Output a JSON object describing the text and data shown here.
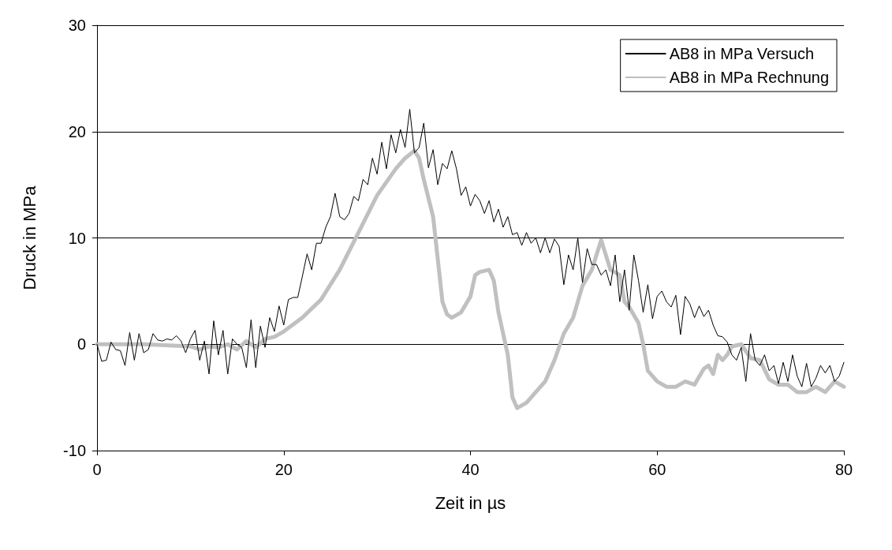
{
  "chart_data": {
    "type": "line",
    "xlabel": "Zeit in µs",
    "ylabel": "Druck in MPa",
    "xlim": [
      0,
      80
    ],
    "xticks": [
      0,
      20,
      40,
      60,
      80
    ],
    "ylim": [
      -10,
      30
    ],
    "yticks": [
      -10,
      0,
      10,
      20,
      30
    ],
    "grid": "y",
    "legend": "top right",
    "marker": "none",
    "line_style": "solid",
    "series": [
      {
        "name": "AB8 in MPa Versuch",
        "color": "#000000",
        "x": [
          0,
          0.5,
          1,
          1.5,
          2,
          2.5,
          3,
          3.5,
          4,
          4.5,
          5,
          5.5,
          6,
          6.5,
          7,
          7.5,
          8,
          8.5,
          9,
          9.5,
          10,
          10.5,
          11,
          11.5,
          12,
          12.5,
          13,
          13.5,
          14,
          14.5,
          15,
          15.5,
          16,
          16.5,
          17,
          17.5,
          18,
          18.5,
          19,
          19.5,
          20,
          20.5,
          21,
          21.5,
          22,
          22.5,
          23,
          23.5,
          24,
          24.5,
          25,
          25.5,
          26,
          26.5,
          27,
          27.5,
          28,
          28.5,
          29,
          29.5,
          30,
          30.5,
          31,
          31.5,
          32,
          32.5,
          33,
          33.5,
          34,
          34.5,
          35,
          35.5,
          36,
          36.5,
          37,
          37.5,
          38,
          38.5,
          39,
          39.5,
          40,
          40.5,
          41,
          41.5,
          42,
          42.5,
          43,
          43.5,
          44,
          44.5,
          45,
          45.5,
          46,
          46.5,
          47,
          47.5,
          48,
          48.5,
          49,
          49.5,
          50,
          50.5,
          51,
          51.5,
          52,
          52.5,
          53,
          53.5,
          54,
          54.5,
          55,
          55.5,
          56,
          56.5,
          57,
          57.5,
          58,
          58.5,
          59,
          59.5,
          60,
          60.5,
          61,
          61.5,
          62,
          62.5,
          63,
          63.5,
          64,
          64.5,
          65,
          65.5,
          66,
          66.5,
          67,
          67.5,
          68,
          68.5,
          69,
          69.5,
          70,
          70.5,
          71,
          71.5,
          72,
          72.5,
          73,
          73.5,
          74,
          74.5,
          75,
          75.5,
          76,
          76.5,
          77,
          77.5,
          78,
          78.5,
          79,
          79.5,
          80
        ],
        "values": [
          0,
          -1.6,
          -1.5,
          0.2,
          -0.5,
          -0.6,
          -2,
          1.1,
          -1.5,
          1,
          -0.8,
          -0.5,
          1,
          0.4,
          0.3,
          0.5,
          0.4,
          0.8,
          0.3,
          -0.8,
          0.5,
          1.3,
          -1.5,
          0.3,
          -2.8,
          2.2,
          -1,
          1.3,
          -2.8,
          0.5,
          0,
          -0.3,
          -2.2,
          2.3,
          -2.2,
          1.7,
          -0.3,
          2.5,
          1.2,
          3.6,
          1.8,
          4.2,
          4.4,
          4.4,
          6.4,
          8.5,
          7,
          9.5,
          9.5,
          11,
          12,
          14.2,
          12,
          11.7,
          12.3,
          13.9,
          13.5,
          15.5,
          15,
          17.5,
          16,
          19,
          16.5,
          19.7,
          18,
          20.2,
          18.5,
          22.1,
          18,
          18.5,
          20.8,
          16.6,
          18.3,
          15,
          17,
          16.5,
          18.2,
          16.5,
          14,
          14.8,
          13,
          14.1,
          13.5,
          12.3,
          13.5,
          11.5,
          12.7,
          11,
          12,
          10.3,
          10.5,
          9.3,
          10.5,
          9.5,
          10,
          8.6,
          10,
          8.6,
          9.9,
          9.2,
          5.6,
          8.4,
          7,
          10,
          5.8,
          9,
          7.5,
          7.5,
          6.5,
          7,
          5.5,
          8.4,
          4,
          7,
          3.2,
          8.4,
          6,
          3,
          5.6,
          2.4,
          4.5,
          5,
          4,
          3.5,
          4.6,
          0.9,
          4.5,
          3.8,
          2.5,
          3.6,
          2.6,
          3.2,
          1.8,
          0.8,
          0.7,
          0.2,
          -1,
          -1.5,
          -0.3,
          -3.5,
          1,
          -1.5,
          -2,
          -1,
          -2.5,
          -2,
          -3.7,
          -1.7,
          -3.5,
          -1,
          -3,
          -4,
          -1.8,
          -4,
          -3.2,
          -2,
          -2.7,
          -2,
          -3.5,
          -3,
          -1.7
        ]
      },
      {
        "name": "AB8 in MPa Rechnung",
        "color": "#c0c0c0",
        "x": [
          0,
          5,
          10,
          11,
          12,
          13,
          14,
          15,
          16,
          17,
          18,
          19,
          20,
          22,
          24,
          26,
          28,
          30,
          32,
          33,
          34,
          34.5,
          35,
          36,
          37,
          37.5,
          38,
          39,
          40,
          40.5,
          41,
          42,
          42.5,
          43,
          44,
          44.5,
          45,
          46,
          47,
          48,
          49,
          50,
          51,
          52,
          53,
          54,
          55,
          56,
          56.5,
          57,
          58,
          58.5,
          59,
          60,
          61,
          62,
          63,
          64,
          65,
          65.5,
          66,
          66.5,
          67,
          67.5,
          68,
          69,
          70,
          71,
          72,
          73,
          74,
          75,
          76,
          77,
          78,
          79,
          80
        ],
        "values": [
          0,
          0,
          -0.2,
          -0.5,
          -0.2,
          -0.3,
          0,
          -0.5,
          0.3,
          -0.3,
          0.5,
          0.7,
          1.2,
          2.5,
          4.2,
          7,
          10.5,
          14,
          16.5,
          17.5,
          18.2,
          17.5,
          15.5,
          12,
          4,
          2.8,
          2.5,
          3,
          4.5,
          6.5,
          6.8,
          7,
          6,
          3,
          -1,
          -5,
          -6,
          -5.5,
          -4.5,
          -3.5,
          -1.5,
          1,
          2.5,
          5.5,
          7,
          9.8,
          7,
          6.5,
          4,
          3.5,
          2,
          0,
          -2.5,
          -3.5,
          -4,
          -4,
          -3.5,
          -3.8,
          -2.3,
          -2,
          -2.8,
          -1,
          -1.5,
          -1,
          -0.2,
          0,
          -1.3,
          -1.5,
          -3.3,
          -3.8,
          -3.8,
          -4.5,
          -4.5,
          -4,
          -4.5,
          -3.5,
          -4
        ]
      }
    ]
  }
}
